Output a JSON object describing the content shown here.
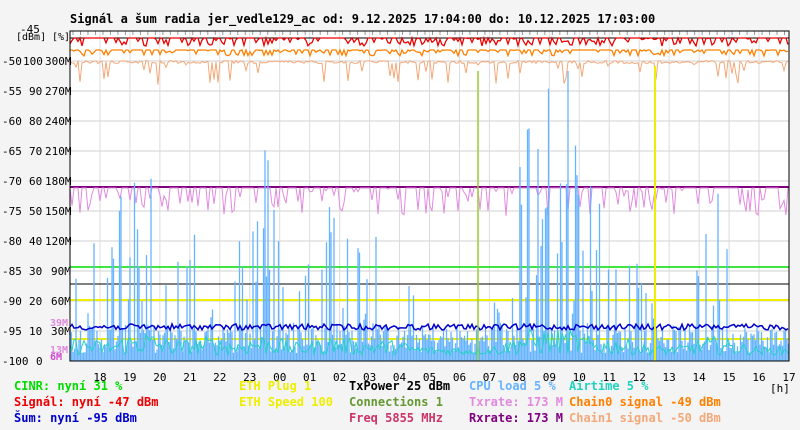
{
  "chart_data": {
    "type": "line",
    "title": "Signál a šum radia jer_vedle129_ac od: 9.12.2025 17:04:00 do: 10.12.2025 17:03:00",
    "y_unit_labels": [
      "[dBm]",
      "[%]"
    ],
    "x_unit": "[h]",
    "x_ticks": [
      "18",
      "19",
      "20",
      "21",
      "22",
      "23",
      "00",
      "01",
      "02",
      "03",
      "04",
      "05",
      "06",
      "07",
      "08",
      "09",
      "10",
      "11",
      "12",
      "13",
      "14",
      "15",
      "16",
      "17"
    ],
    "y_ticks": [
      {
        "dbm": "-45",
        "pct": "",
        "rate": ""
      },
      {
        "dbm": "-50",
        "pct": "100",
        "rate": "300M"
      },
      {
        "dbm": "-55",
        "pct": "90",
        "rate": "270M"
      },
      {
        "dbm": "-60",
        "pct": "80",
        "rate": "240M"
      },
      {
        "dbm": "-65",
        "pct": "70",
        "rate": "210M"
      },
      {
        "dbm": "-70",
        "pct": "60",
        "rate": "180M"
      },
      {
        "dbm": "-75",
        "pct": "50",
        "rate": "150M"
      },
      {
        "dbm": "-80",
        "pct": "40",
        "rate": "120M"
      },
      {
        "dbm": "-85",
        "pct": "30",
        "rate": "90M"
      },
      {
        "dbm": "-90",
        "pct": "20",
        "rate": "60M"
      },
      {
        "dbm": "-95",
        "pct": "10",
        "rate": "30M"
      },
      {
        "dbm": "-100",
        "pct": "0",
        "rate": ""
      }
    ],
    "ylim_dbm": [
      -100,
      -45
    ],
    "xlim_hours": [
      0,
      24
    ],
    "inner_labels": [
      {
        "text": "39M",
        "color": "#dd88dd"
      },
      {
        "text": "13M",
        "color": "#dd88dd"
      },
      {
        "text": "6M",
        "color": "#cc44cc"
      }
    ],
    "series": [
      {
        "name": "Signál",
        "color": "#ee0000",
        "value": -47
      },
      {
        "name": "Chain0 signal",
        "color": "#ff8000",
        "value": -49
      },
      {
        "name": "Chain1 signal",
        "color": "#f4a878",
        "value": -50
      },
      {
        "name": "Šum",
        "color": "#0000cc",
        "value": -95
      },
      {
        "name": "CINR",
        "color": "#00dd00",
        "value": 31
      },
      {
        "name": "Txrate",
        "color": "#e28ae0",
        "value": 173
      },
      {
        "name": "Rxrate",
        "color": "#800080",
        "value": 173
      },
      {
        "name": "CPU load",
        "color": "#66b3ff",
        "value": 5
      },
      {
        "name": "Airtime",
        "color": "#22d3c0",
        "value": 5
      },
      {
        "name": "ETH Speed",
        "color": "#eeee00",
        "value": 100
      }
    ]
  },
  "legend": {
    "col1": [
      {
        "text": "CINR: nyní 31 %",
        "color": "#00dd00"
      },
      {
        "text": "Signál: nyní -47 dBm",
        "color": "#ee0000"
      },
      {
        "text": "Šum: nyní -95 dBm",
        "color": "#0000cc"
      }
    ],
    "col2": [
      {
        "text": "ETH Plug 1",
        "color": "#eeee00"
      },
      {
        "text": "ETH Speed 100",
        "color": "#eeee00"
      }
    ],
    "col3": [
      {
        "text": "TxPower 25 dBm",
        "color": "#000000"
      },
      {
        "text": "Connections 1",
        "color": "#669933"
      },
      {
        "text": "Freq 5855 MHz",
        "color": "#cc3366"
      }
    ],
    "col4": [
      {
        "text": "CPU load 5 %",
        "color": "#66b3ff"
      },
      {
        "text": "Txrate: 173 M",
        "color": "#e28ae0"
      },
      {
        "text": "Rxrate: 173 M",
        "color": "#800080"
      }
    ],
    "col5": [
      {
        "text": "Airtime 5 %",
        "color": "#22d3c0"
      },
      {
        "text": "Chain0 signal -49 dBm",
        "color": "#ff8000"
      },
      {
        "text": "Chain1 signal -50 dBm",
        "color": "#f4a878"
      }
    ]
  }
}
